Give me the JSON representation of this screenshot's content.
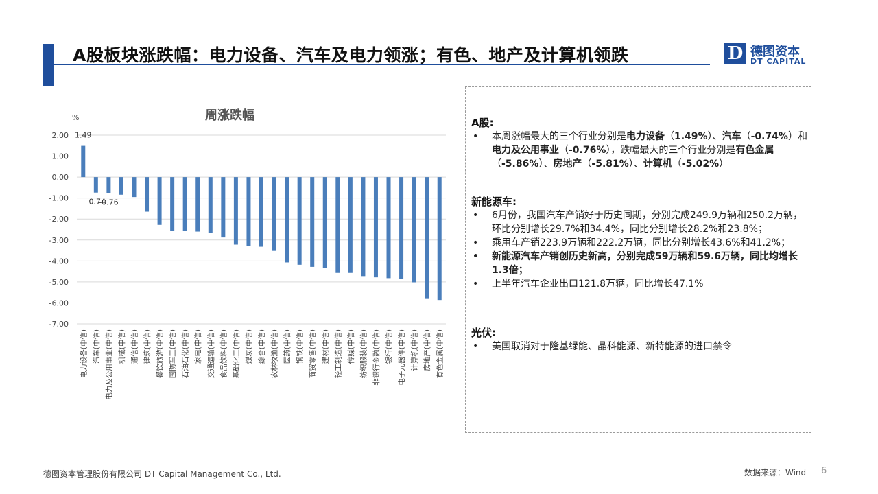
{
  "header": {
    "title": "A股板块涨跌幅：电力设备、汽车及电力领涨；有色、地产及计算机领跌",
    "logo_mark": "D",
    "logo_cn": "德图资本",
    "logo_en": "DT CAPITAL",
    "brand_color": "#1f4e9c"
  },
  "chart_data": {
    "type": "bar",
    "title": "周涨跌幅",
    "ylabel": "%",
    "ylim": [
      -7,
      2
    ],
    "yticks": [
      "2.00",
      "1.00",
      "0.00",
      "-1.00",
      "-2.00",
      "-3.00",
      "-4.00",
      "-5.00",
      "-6.00",
      "-7.00"
    ],
    "grid": true,
    "bar_color": "#4a7ebb",
    "categories": [
      "电力设备(中信)",
      "汽车(中信)",
      "电力及公用事业(中信)",
      "机械(中信)",
      "通信(中信)",
      "建筑(中信)",
      "餐饮旅游(中信)",
      "国防军工(中信)",
      "石油石化(中信)",
      "家电(中信)",
      "交通运输(中信)",
      "食品饮料(中信)",
      "基础化工(中信)",
      "煤炭(中信)",
      "综合(中信)",
      "农林牧渔(中信)",
      "医药(中信)",
      "钢铁(中信)",
      "商贸零售(中信)",
      "建材(中信)",
      "轻工制造(中信)",
      "传媒(中信)",
      "纺织服装(中信)",
      "非银行金融(中信)",
      "银行(中信)",
      "电子元器件(中信)",
      "计算机(中信)",
      "房地产(中信)",
      "有色金属(中信)"
    ],
    "values": [
      1.49,
      -0.74,
      -0.76,
      -0.84,
      -0.95,
      -1.65,
      -2.28,
      -2.55,
      -2.55,
      -2.6,
      -2.65,
      -2.88,
      -3.22,
      -3.28,
      -3.32,
      -3.52,
      -4.07,
      -4.18,
      -4.28,
      -4.33,
      -4.57,
      -4.57,
      -4.72,
      -4.78,
      -4.82,
      -4.85,
      -5.02,
      -5.81,
      -5.86
    ],
    "data_labels": [
      {
        "index": 0,
        "text": "1.49"
      },
      {
        "index": 1,
        "text": "-0.74"
      },
      {
        "index": 2,
        "text": "-0.76"
      }
    ]
  },
  "panel": {
    "a_share": {
      "heading": "A股:",
      "b1_parts": [
        "本周涨幅最大的三个行业分别是",
        "电力设备",
        "（",
        "1.49%",
        "）、",
        "汽车",
        "（",
        "-0.74%",
        "）和",
        "电力及公用事业",
        "（",
        "-0.76%",
        "），跌幅最大的三个行业分别是",
        "有色金属",
        "（",
        "-5.86%",
        "）、",
        "房地产",
        "（",
        "-5.81%",
        "）、",
        "计算机",
        "（",
        "-5.02%",
        "）"
      ]
    },
    "nev": {
      "heading": "新能源车:",
      "items": [
        "6月份，我国汽车产销好于历史同期，分别完成249.9万辆和250.2万辆，环比分别增长29.7%和34.4%，同比分别增长28.2%和23.8%；",
        "乘用车产销223.9万辆和222.2万辆，同比分别增长43.6%和41.2%；",
        "新能源汽车产销创历史新高，分别完成59万辆和59.6万辆，同比均增长1.3倍；",
        "上半年汽车企业出口121.8万辆，同比增长47.1%"
      ]
    },
    "pv": {
      "heading": "光伏:",
      "items": [
        "美国取消对于隆基绿能、晶科能源、新特能源的进口禁令"
      ]
    }
  },
  "footer": {
    "company": "德图资本管理股份有限公司  DT Capital Management Co., Ltd.",
    "source": "数据来源：Wind",
    "page": "6"
  }
}
